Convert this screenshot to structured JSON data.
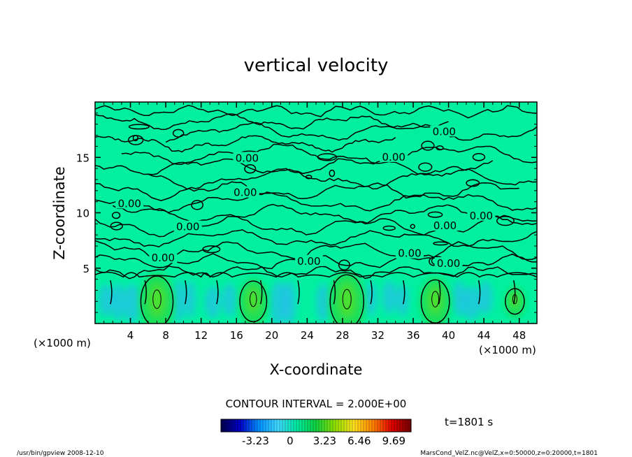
{
  "chart_data": {
    "type": "heatmap",
    "title": "vertical velocity",
    "xlabel": "X-coordinate",
    "ylabel": "Z-coordinate",
    "x_unit_left": "(×1000 m)",
    "x_unit_right": "(×1000 m)",
    "xlim": [
      0,
      50
    ],
    "ylim": [
      0,
      20
    ],
    "x_ticks": [
      4,
      8,
      12,
      16,
      20,
      24,
      28,
      32,
      36,
      40,
      44,
      48
    ],
    "y_ticks": [
      5,
      10,
      15
    ],
    "contour_interval_label": "CONTOUR INTERVAL = 2.000E+00",
    "contour_labels": [
      {
        "text": "0.00",
        "x": 39.5,
        "z": 17.2
      },
      {
        "text": "0.00",
        "x": 17.2,
        "z": 14.8
      },
      {
        "text": "0.00",
        "x": 33.8,
        "z": 14.9
      },
      {
        "text": "0.00",
        "x": 17.0,
        "z": 11.7
      },
      {
        "text": "0.00",
        "x": 3.9,
        "z": 10.7
      },
      {
        "text": "0.00",
        "x": 43.7,
        "z": 9.6
      },
      {
        "text": "0.00",
        "x": 10.5,
        "z": 8.6
      },
      {
        "text": "0.00",
        "x": 39.6,
        "z": 8.7
      },
      {
        "text": "0.00",
        "x": 7.7,
        "z": 5.8
      },
      {
        "text": "0.00",
        "x": 35.6,
        "z": 6.2
      },
      {
        "text": "0.00",
        "x": 24.2,
        "z": 5.5
      },
      {
        "text": "0.00",
        "x": 40.0,
        "z": 5.3
      }
    ],
    "updrafts": [
      {
        "x": 7.0,
        "peak": 9.0
      },
      {
        "x": 17.9,
        "peak": 7.0
      },
      {
        "x": 28.5,
        "peak": 9.5
      },
      {
        "x": 38.5,
        "peak": 7.5
      },
      {
        "x": 47.5,
        "peak": 4.0
      }
    ],
    "colorbar": {
      "ticks": [
        "-3.23",
        "0",
        "3.23",
        "6.46",
        "9.69"
      ],
      "range": [
        -6.46,
        11.3
      ],
      "colors": [
        "#00004a",
        "#0000c8",
        "#0090ff",
        "#40d8ff",
        "#00e8a0",
        "#10d040",
        "#90e000",
        "#ffe020",
        "#ff8000",
        "#e00000",
        "#700000"
      ]
    },
    "time_label": "t=1801 s",
    "background_color": "#00f0a0"
  },
  "footer": {
    "left": "/usr/bin/gpview   2008-12-10",
    "right": "MarsCond_VelZ.nc@VelZ,x=0:50000,z=0:20000,t=1801"
  }
}
